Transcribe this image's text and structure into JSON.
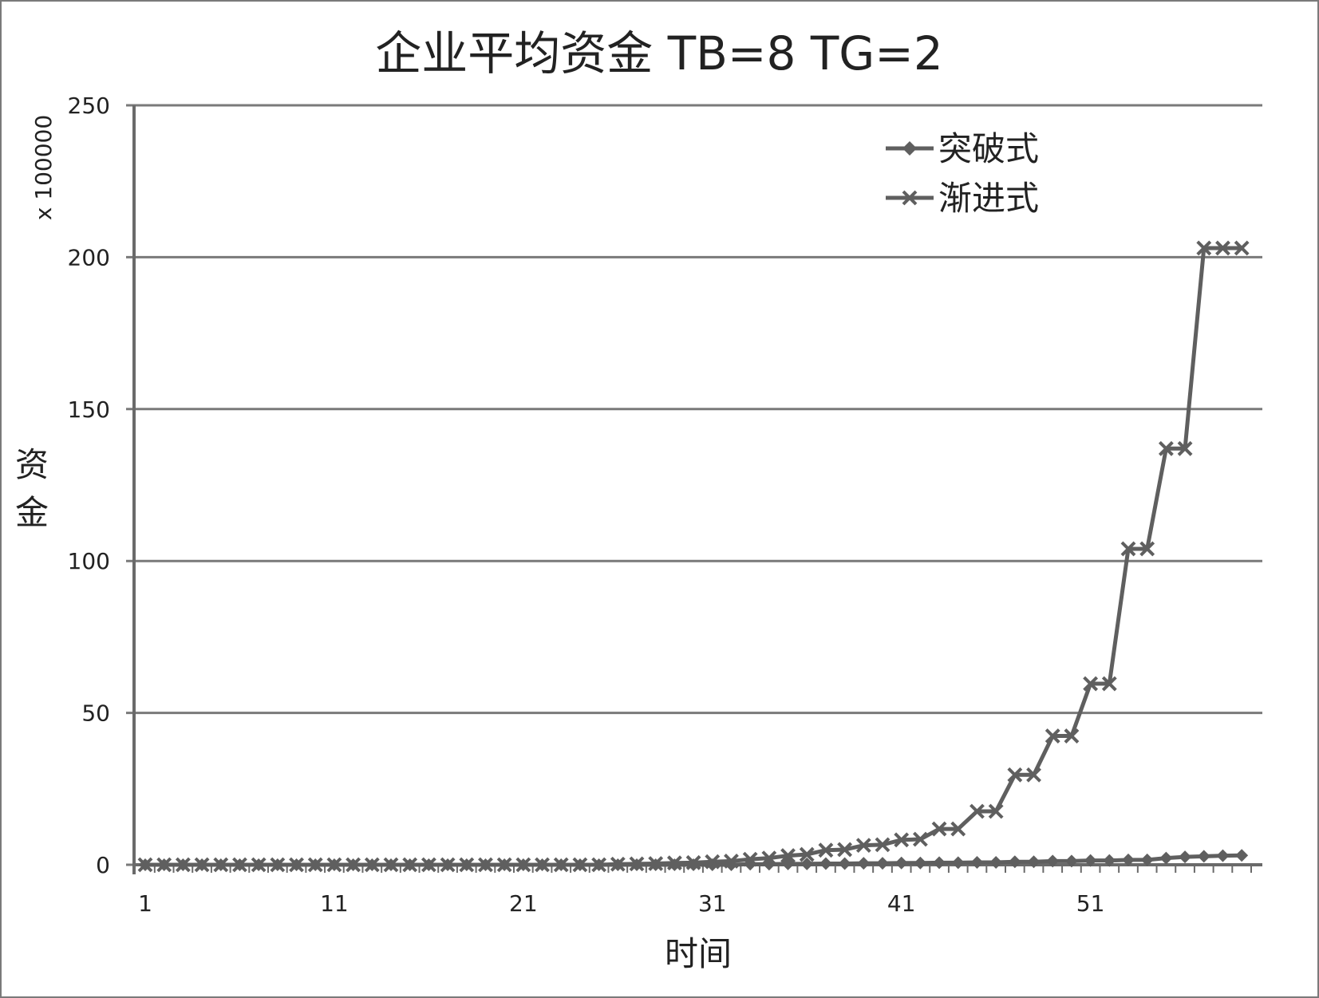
{
  "chart_data": {
    "type": "line",
    "title": "企业平均资金 TB=8 TG=2",
    "xlabel": "时间",
    "ylabel": "资金",
    "y_multiplier_label": "x 100000",
    "x": [
      1,
      2,
      3,
      4,
      5,
      6,
      7,
      8,
      9,
      10,
      11,
      12,
      13,
      14,
      15,
      16,
      17,
      18,
      19,
      20,
      21,
      22,
      23,
      24,
      25,
      26,
      27,
      28,
      29,
      30,
      31,
      32,
      33,
      34,
      35,
      36,
      37,
      38,
      39,
      40,
      41,
      42,
      43,
      44,
      45,
      46,
      47,
      48,
      49,
      50,
      51,
      52,
      53,
      54,
      55,
      56,
      57,
      58,
      59
    ],
    "x_tick_labels": [
      "1",
      "11",
      "21",
      "31",
      "41",
      "51"
    ],
    "x_tick_values": [
      1,
      11,
      21,
      31,
      41,
      51
    ],
    "ylim": [
      0,
      250
    ],
    "y_ticks": [
      0,
      50,
      100,
      150,
      200,
      250
    ],
    "y_tick_labels": [
      "0",
      "50",
      "100",
      "150",
      "200",
      "250"
    ],
    "grid": true,
    "legend_position": "top-right",
    "colors": {
      "line": "#5f5f5f",
      "grid": "#7a7a7a",
      "axis": "#6a6a6a",
      "text": "#222222"
    },
    "series": [
      {
        "name": "突破式",
        "marker": "diamond",
        "values": [
          0,
          0,
          0,
          0,
          0,
          0,
          0,
          0,
          0,
          0,
          0,
          0,
          0,
          0,
          0,
          0,
          0,
          0,
          0,
          0,
          0,
          0,
          0,
          0,
          0,
          0,
          0,
          0,
          0,
          0,
          0,
          0,
          0.2,
          0.2,
          0.3,
          0.3,
          0.4,
          0.4,
          0.5,
          0.5,
          0.6,
          0.6,
          0.7,
          0.7,
          0.8,
          0.8,
          1.0,
          1.0,
          1.2,
          1.2,
          1.4,
          1.4,
          1.6,
          1.6,
          2.2,
          2.6,
          2.8,
          3.0,
          3.1
        ]
      },
      {
        "name": "渐进式",
        "marker": "x",
        "values": [
          0,
          0,
          0,
          0,
          0,
          0,
          0,
          0,
          0,
          0,
          0,
          0,
          0,
          0,
          0,
          0,
          0,
          0,
          0,
          0,
          0,
          0,
          0,
          0,
          0,
          0.2,
          0.3,
          0.4,
          0.6,
          0.7,
          1.0,
          1.2,
          1.8,
          2.2,
          3.0,
          3.4,
          4.8,
          5.0,
          6.4,
          6.6,
          8.2,
          8.4,
          11.8,
          11.8,
          17.6,
          17.6,
          29.6,
          29.6,
          42.4,
          42.4,
          59.6,
          59.6,
          104,
          104,
          137,
          137,
          203,
          203,
          203
        ]
      }
    ]
  }
}
